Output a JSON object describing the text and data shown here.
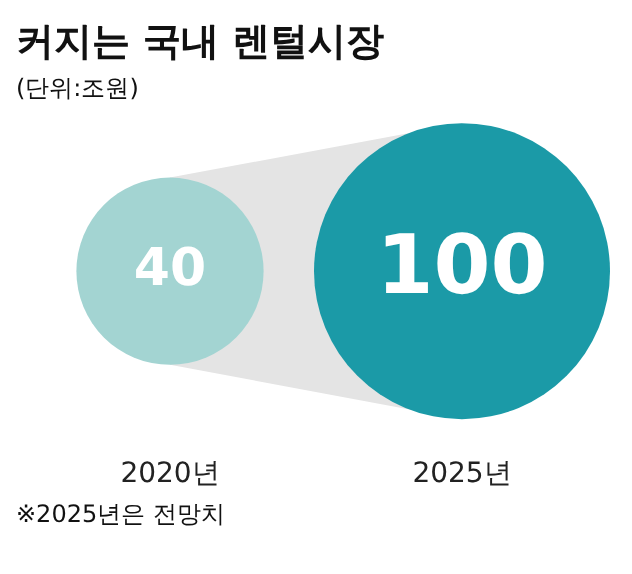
{
  "chart_data": {
    "type": "other",
    "title": "커지는 국내 렌털시장",
    "subtitle": "(단위:조원)",
    "categories": [
      "2020년",
      "2025년"
    ],
    "values": [
      40,
      100
    ],
    "colors": [
      "#a3d4d2",
      "#1b9aa7"
    ],
    "data_labels": true,
    "annotations": [
      "※2025년은 전망치"
    ]
  }
}
